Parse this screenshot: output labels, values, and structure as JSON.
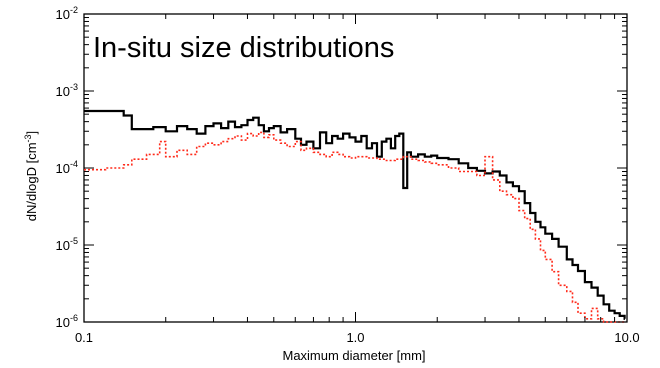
{
  "chart_data": {
    "type": "line",
    "title": "In-situ size distributions",
    "xlabel": "Maximum diameter [mm]",
    "ylabel": "dN/dlogD [cm⁻³]",
    "ylabel_base": "dN/dlogD [cm",
    "ylabel_exp": "-3",
    "ylabel_close": "]",
    "xscale": "log",
    "yscale": "log",
    "xlim": [
      0.1,
      10.0
    ],
    "ylim": [
      1e-06,
      0.01
    ],
    "x_ticks": [
      {
        "value": 0.1,
        "label": "0.1"
      },
      {
        "value": 1.0,
        "label": "1.0"
      },
      {
        "value": 10.0,
        "label": "10.0"
      }
    ],
    "y_ticks": [
      {
        "value": 1e-06,
        "base": "10",
        "exp": "-6"
      },
      {
        "value": 1e-05,
        "base": "10",
        "exp": "-5"
      },
      {
        "value": 0.0001,
        "base": "10",
        "exp": "-4"
      },
      {
        "value": 0.001,
        "base": "10",
        "exp": "-3"
      },
      {
        "value": 0.01,
        "base": "10",
        "exp": "-2"
      }
    ],
    "grid": false,
    "series": [
      {
        "style": "solid",
        "color": "#000000",
        "x": [
          0.1,
          0.14,
          0.15,
          0.18,
          0.2,
          0.22,
          0.24,
          0.26,
          0.28,
          0.3,
          0.32,
          0.34,
          0.36,
          0.38,
          0.4,
          0.42,
          0.44,
          0.46,
          0.48,
          0.5,
          0.53,
          0.56,
          0.6,
          0.63,
          0.66,
          0.7,
          0.74,
          0.78,
          0.82,
          0.86,
          0.9,
          0.95,
          1.0,
          1.05,
          1.1,
          1.15,
          1.2,
          1.25,
          1.3,
          1.35,
          1.4,
          1.45,
          1.5,
          1.55,
          1.6,
          1.7,
          1.8,
          1.9,
          2.0,
          2.2,
          2.4,
          2.6,
          2.8,
          3.0,
          3.2,
          3.4,
          3.6,
          3.8,
          4.0,
          4.2,
          4.4,
          4.6,
          4.8,
          5.0,
          5.3,
          5.6,
          6.0,
          6.3,
          6.6,
          7.0,
          7.4,
          7.8,
          8.2,
          8.6,
          9.0,
          9.4,
          9.8
        ],
        "y": [
          0.00055,
          0.00048,
          0.00032,
          0.00034,
          0.0003,
          0.00035,
          0.00032,
          0.00028,
          0.00035,
          0.00038,
          0.00033,
          0.0004,
          0.00034,
          0.00036,
          0.00042,
          0.00045,
          0.00036,
          0.0003,
          0.00033,
          0.00035,
          0.00029,
          0.00032,
          0.00024,
          0.0002,
          0.00022,
          0.00018,
          0.00029,
          0.00021,
          0.00026,
          0.00024,
          0.00028,
          0.00025,
          0.00022,
          0.00026,
          0.00018,
          0.00021,
          0.00014,
          0.00022,
          0.00024,
          0.00018,
          0.00026,
          0.00028,
          5.5e-05,
          0.00016,
          0.00014,
          0.00015,
          0.00014,
          0.000145,
          0.000135,
          0.00013,
          0.000115,
          0.0001,
          9.2e-05,
          8.5e-05,
          9e-05,
          8e-05,
          6.5e-05,
          5.8e-05,
          5e-05,
          3.5e-05,
          2.6e-05,
          2e-05,
          1.7e-05,
          1.4e-05,
          1.2e-05,
          9.5e-06,
          6.5e-06,
          5.5e-06,
          4.6e-06,
          3.3e-06,
          2.8e-06,
          2.2e-06,
          1.7e-06,
          1.4e-06,
          1.3e-06,
          1.2e-06,
          1.1e-06
        ]
      },
      {
        "style": "dotted",
        "color": "#ff2a1a",
        "x": [
          0.1,
          0.12,
          0.14,
          0.15,
          0.17,
          0.19,
          0.2,
          0.22,
          0.24,
          0.26,
          0.28,
          0.3,
          0.32,
          0.34,
          0.36,
          0.38,
          0.4,
          0.42,
          0.44,
          0.46,
          0.48,
          0.5,
          0.53,
          0.56,
          0.6,
          0.63,
          0.66,
          0.7,
          0.74,
          0.78,
          0.82,
          0.86,
          0.9,
          0.95,
          1.0,
          1.1,
          1.2,
          1.3,
          1.4,
          1.5,
          1.6,
          1.7,
          1.8,
          1.9,
          2.0,
          2.2,
          2.4,
          2.6,
          2.8,
          3.0,
          3.2,
          3.4,
          3.6,
          3.8,
          4.0,
          4.2,
          4.4,
          4.6,
          4.8,
          5.0,
          5.3,
          5.6,
          6.0,
          6.3,
          6.6,
          7.0,
          7.4,
          7.8,
          8.2,
          8.6,
          9.0
        ],
        "y": [
          9.5e-05,
          0.0001,
          0.00011,
          0.00013,
          0.00015,
          0.00022,
          0.00014,
          0.00017,
          0.00015,
          0.00019,
          0.00021,
          0.0002,
          0.00022,
          0.00024,
          0.00026,
          0.00023,
          0.00028,
          0.00026,
          0.00029,
          0.00025,
          0.00027,
          0.00023,
          0.00021,
          0.00019,
          0.00022,
          0.00017,
          0.00018,
          0.00016,
          0.00015,
          0.00014,
          0.00016,
          0.00015,
          0.00014,
          0.000135,
          0.00014,
          0.000135,
          0.00013,
          0.000125,
          0.00013,
          0.00014,
          0.00013,
          0.000125,
          0.00012,
          0.000115,
          0.00011,
          0.0001,
          9e-05,
          9e-05,
          8e-05,
          0.00014,
          7e-05,
          5e-05,
          4.5e-05,
          4e-05,
          2.8e-05,
          2.2e-05,
          1.6e-05,
          1.2e-05,
          8.5e-06,
          6.5e-06,
          4.5e-06,
          3e-06,
          2.5e-06,
          1.8e-06,
          1.3e-06,
          1.1e-06,
          1.5e-06,
          1.1e-06,
          1e-06,
          1e-06,
          1e-06
        ]
      }
    ]
  }
}
